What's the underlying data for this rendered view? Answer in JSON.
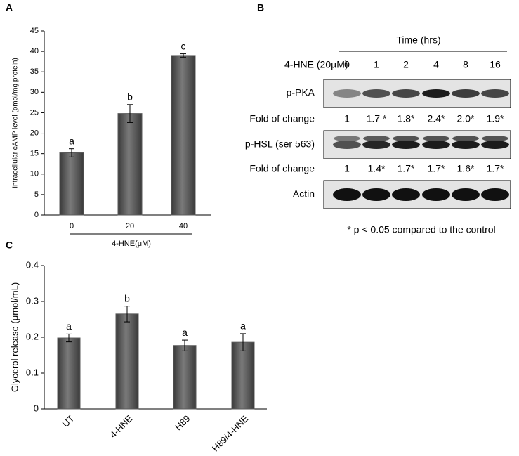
{
  "panel_labels": [
    "A",
    "B",
    "C"
  ],
  "chart_data": [
    {
      "type": "bar",
      "ylabel": "Intracellular cAMP level (pmol/mg protein)",
      "xlabel": "4-HNE(μM)",
      "categories": [
        "0",
        "20",
        "40"
      ],
      "values": [
        15.2,
        24.8,
        39.0
      ],
      "errors": [
        1.0,
        2.2,
        0.4
      ],
      "annotations": [
        "a",
        "b",
        "c"
      ],
      "color": "#5a5a5a",
      "ylim": [
        0,
        45
      ],
      "yticks": [
        0,
        5,
        10,
        15,
        20,
        25,
        30,
        35,
        40,
        45
      ]
    },
    {
      "type": "bar",
      "ylabel": "Glycerol release (μmol/mL)",
      "categories": [
        "UT",
        "4-HNE",
        "H89",
        "H89/4-HNE"
      ],
      "values": [
        0.198,
        0.265,
        0.177,
        0.186
      ],
      "errors": [
        0.011,
        0.022,
        0.015,
        0.024
      ],
      "annotations": [
        "a",
        "b",
        "a",
        "a"
      ],
      "color": "#5a5a5a",
      "ylim": [
        0,
        0.4
      ],
      "yticks": [
        0,
        0.1,
        0.2,
        0.3,
        0.4
      ]
    }
  ],
  "blot": {
    "time_label": "Time (hrs)",
    "treatment": "4-HNE (20µM)",
    "times": [
      0,
      1,
      2,
      4,
      8,
      16
    ],
    "rows": [
      {
        "label": "p-PKA"
      },
      {
        "label": "Fold of change",
        "values": [
          "1",
          "1.7 *",
          "1.8*",
          "2.4*",
          "2.0*",
          "1.9*"
        ]
      },
      {
        "label": "p-HSL (ser 563)"
      },
      {
        "label": "Fold of change",
        "values": [
          "1",
          "1.4*",
          "1.7*",
          "1.7*",
          "1.6*",
          "1.7*"
        ]
      },
      {
        "label": "Actin"
      }
    ],
    "footnote": "* p < 0.05 compared to the control"
  }
}
